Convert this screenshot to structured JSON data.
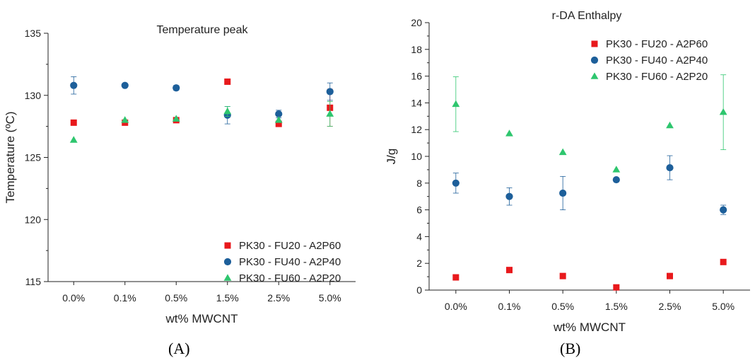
{
  "panels": [
    {
      "label": "(A)",
      "chart_data": {
        "type": "scatter",
        "title": "Temperature peak",
        "xlabel": "wt% MWCNT",
        "ylabel": "Temperature (ºC)",
        "categories": [
          "0.0%",
          "0.1%",
          "0.5%",
          "1.5%",
          "2.5%",
          "5.0%"
        ],
        "ylim": [
          115,
          135
        ],
        "yticks": [
          115,
          120,
          125,
          130,
          135
        ],
        "grid": false,
        "legend_position": "bottom-right",
        "series": [
          {
            "name": "PK30 - FU20 - A2P60",
            "marker": "square",
            "color": "#e8191c",
            "values": [
              127.8,
              127.8,
              128.0,
              131.1,
              127.7,
              129.0
            ],
            "errors": [
              0,
              0,
              0,
              0,
              0,
              1.5
            ]
          },
          {
            "name": "PK30 - FU40 - A2P40",
            "marker": "circle",
            "color": "#1d5f9a",
            "values": [
              130.8,
              130.8,
              130.6,
              128.4,
              128.5,
              130.3
            ],
            "errors": [
              0.7,
              0,
              0.2,
              0.7,
              0.3,
              0.7
            ]
          },
          {
            "name": "PK30 - FU60 - A2P20",
            "marker": "triangle",
            "color": "#2ec66e",
            "values": [
              126.4,
              128.0,
              128.1,
              128.7,
              128.0,
              128.5
            ],
            "errors": [
              0,
              0,
              0,
              0.4,
              0,
              1.0
            ]
          }
        ]
      }
    },
    {
      "label": "(B)",
      "chart_data": {
        "type": "scatter",
        "title": "r-DA Enthalpy",
        "xlabel": "wt% MWCNT",
        "ylabel": "J/g",
        "categories": [
          "0.0%",
          "0.1%",
          "0.5%",
          "1.5%",
          "2.5%",
          "5.0%"
        ],
        "ylim": [
          0,
          20
        ],
        "yticks": [
          0,
          2,
          4,
          6,
          8,
          10,
          12,
          14,
          16,
          18,
          20
        ],
        "grid": false,
        "legend_position": "top-right",
        "series": [
          {
            "name": "PK30 - FU20 - A2P60",
            "marker": "square",
            "color": "#e8191c",
            "values": [
              0.95,
              1.5,
              1.05,
              0.2,
              1.05,
              2.1
            ],
            "errors": [
              0,
              0,
              0,
              0,
              0,
              0
            ]
          },
          {
            "name": "PK30 - FU40 - A2P40",
            "marker": "circle",
            "color": "#1d5f9a",
            "values": [
              8.0,
              7.0,
              7.25,
              8.25,
              9.15,
              6.0
            ],
            "errors": [
              0.75,
              0.65,
              1.25,
              0,
              0.9,
              0.35
            ]
          },
          {
            "name": "PK30 - FU60 - A2P20",
            "marker": "triangle",
            "color": "#2ec66e",
            "values": [
              13.9,
              11.7,
              10.3,
              9.0,
              12.3,
              13.3
            ],
            "errors": [
              2.05,
              0,
              0,
              0,
              0,
              2.8
            ]
          }
        ]
      }
    }
  ]
}
